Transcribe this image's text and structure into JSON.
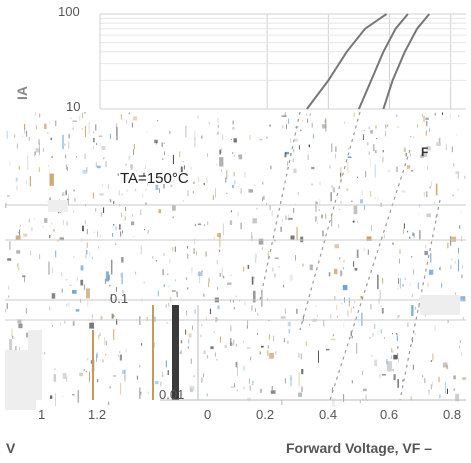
{
  "chart_data": {
    "type": "line",
    "title": "",
    "xlabel": "Forward Voltage, VF –",
    "ylabel": "IA",
    "x_ticks": [
      "0",
      "0.2",
      "0.4",
      "0.6",
      "0.8"
    ],
    "x_ticks_left_fragment": [
      "1",
      "1.2"
    ],
    "y_ticks": [
      "100",
      "10",
      "0.1",
      "0.01"
    ],
    "xlim": [
      0,
      0.85
    ],
    "ylim": [
      0.01,
      100
    ],
    "y_scale": "log",
    "grid": true,
    "annotation": "TA=150°C",
    "left_fragment_label": "V",
    "fragment_text": "F",
    "series": [
      {
        "x": [
          0.33,
          0.4,
          0.46,
          0.52,
          0.59
        ],
        "y": [
          10,
          20,
          40,
          70,
          100
        ]
      },
      {
        "x": [
          0.5,
          0.54,
          0.58,
          0.62,
          0.66
        ],
        "y": [
          10,
          20,
          40,
          70,
          100
        ]
      },
      {
        "x": [
          0.58,
          0.61,
          0.65,
          0.69,
          0.73
        ],
        "y": [
          10,
          20,
          40,
          70,
          100
        ]
      }
    ]
  },
  "colors": {
    "curve": "#777777",
    "grid": "#d0d0d0",
    "noise_blue": "#5b9bd5",
    "noise_orange": "#c89a5a"
  }
}
